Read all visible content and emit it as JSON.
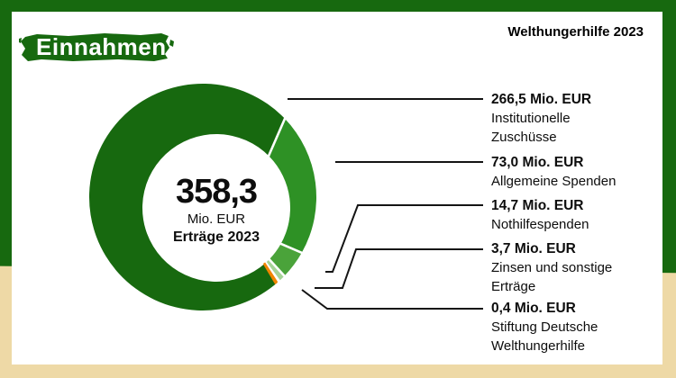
{
  "header": {
    "badge_label": "Einnahmen",
    "brand_label": "Welthungerhilfe 2023"
  },
  "center_total": {
    "value": "358,3",
    "unit": "Mio. EUR",
    "caption": "Erträge 2023"
  },
  "colors": {
    "frame_green": "#17690f",
    "frame_beige": "#eed9a6",
    "badge_green": "#17690f",
    "leader_line": "#141414",
    "card_white": "#ffffff"
  },
  "chart_data": {
    "type": "pie",
    "donut": true,
    "title": "Einnahmen",
    "subtitle": "Welthungerhilfe 2023",
    "unit": "Mio. EUR",
    "total": 358.3,
    "total_label": "358,3 Mio. EUR Erträge 2023",
    "start_angle_deg": 138.2,
    "direction": "clockwise",
    "legend_position": "right",
    "segments": [
      {
        "label": "Institutionelle Zuschüsse",
        "value": 266.5,
        "value_label": "266,5 Mio. EUR",
        "name_lines": [
          "Institutionelle",
          "Zuschüsse"
        ],
        "color": "#17690f"
      },
      {
        "label": "Allgemeine Spenden",
        "value": 73.0,
        "value_label": "73,0 Mio. EUR",
        "name_lines": [
          "Allgemeine Spenden"
        ],
        "color": "#2e9125"
      },
      {
        "label": "Nothilfespenden",
        "value": 14.7,
        "value_label": "14,7 Mio. EUR",
        "name_lines": [
          "Nothilfespenden"
        ],
        "color": "#4aa33a"
      },
      {
        "label": "Zinsen und sonstige Erträge",
        "value": 3.7,
        "value_label": "3,7 Mio. EUR",
        "name_lines": [
          "Zinsen und sonstige",
          "Erträge"
        ],
        "color": "#a5d397"
      },
      {
        "label": "Stiftung Deutsche Welthungerhilfe",
        "value": 0.4,
        "value_label": "0,4 Mio. EUR",
        "name_lines": [
          "Stiftung Deutsche",
          "Welthungerhilfe"
        ],
        "color": "#f18500"
      }
    ]
  }
}
